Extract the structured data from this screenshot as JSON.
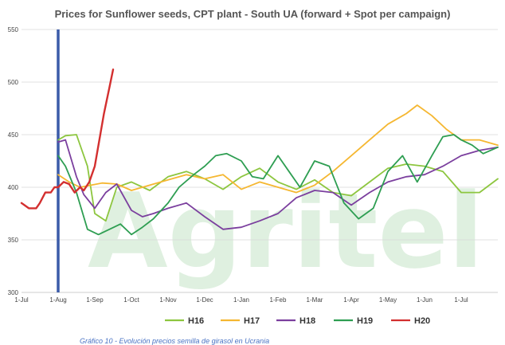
{
  "chart_data": {
    "type": "line",
    "title": "Prices for Sunflower seeds, CPT plant - South UA (forward + Spot per campaign)",
    "watermark": "Agritel",
    "caption": "Gráfico 10 - Evolución precios semilla de girasol en Ucrania",
    "y_ticks": [
      "300",
      "350",
      "400",
      "450",
      "500",
      "550"
    ],
    "ylim": [
      300,
      550
    ],
    "x_ticks": [
      "1-Jul",
      "1-Aug",
      "1-Sep",
      "1-Oct",
      "1-Nov",
      "1-Dec",
      "1-Jan",
      "1-Feb",
      "1-Mar",
      "1-Apr",
      "1-May",
      "1-Jun",
      "1-Jul"
    ],
    "x_range_months": [
      0,
      13
    ],
    "marker": {
      "x": 1.0,
      "label": "1-Aug",
      "color": "#3b5ba9"
    },
    "grid": true,
    "legend_position": "bottom",
    "series": [
      {
        "name": "H16",
        "color": "#8dc63f",
        "x": [
          1.0,
          1.2,
          1.5,
          1.8,
          2.0,
          2.3,
          2.6,
          3.0,
          3.5,
          4.0,
          4.5,
          5.0,
          5.5,
          6.0,
          6.5,
          7.0,
          7.5,
          8.0,
          8.5,
          9.0,
          9.5,
          10.0,
          10.5,
          11.0,
          11.5,
          12.0,
          12.5,
          13.0
        ],
        "y": [
          445,
          449,
          450,
          420,
          375,
          368,
          400,
          405,
          397,
          410,
          415,
          408,
          398,
          410,
          418,
          405,
          398,
          407,
          395,
          392,
          405,
          418,
          422,
          420,
          415,
          395,
          395,
          408
        ]
      },
      {
        "name": "H17",
        "color": "#f5b731",
        "x": [
          1.0,
          1.3,
          1.6,
          1.9,
          2.2,
          2.6,
          3.0,
          3.5,
          4.0,
          4.5,
          5.0,
          5.5,
          6.0,
          6.5,
          7.0,
          7.5,
          8.0,
          8.5,
          9.0,
          9.5,
          10.0,
          10.5,
          10.8,
          11.2,
          11.6,
          12.0,
          12.5,
          13.0
        ],
        "y": [
          412,
          405,
          400,
          402,
          404,
          403,
          397,
          402,
          407,
          412,
          408,
          412,
          398,
          405,
          400,
          395,
          402,
          415,
          430,
          445,
          460,
          470,
          478,
          468,
          455,
          445,
          445,
          440
        ]
      },
      {
        "name": "H18",
        "color": "#7b3f9e",
        "x": [
          1.0,
          1.2,
          1.5,
          1.7,
          2.0,
          2.3,
          2.6,
          3.0,
          3.3,
          3.6,
          4.0,
          4.5,
          5.0,
          5.5,
          6.0,
          6.5,
          7.0,
          7.5,
          8.0,
          8.5,
          9.0,
          9.5,
          10.0,
          10.5,
          11.0,
          11.5,
          12.0,
          12.5,
          13.0
        ],
        "y": [
          443,
          445,
          410,
          393,
          380,
          395,
          403,
          378,
          372,
          375,
          380,
          385,
          372,
          360,
          362,
          368,
          375,
          390,
          397,
          395,
          383,
          395,
          405,
          410,
          412,
          420,
          430,
          435,
          438
        ]
      },
      {
        "name": "H19",
        "color": "#2e9e52",
        "x": [
          1.0,
          1.2,
          1.5,
          1.8,
          2.1,
          2.4,
          2.7,
          3.0,
          3.3,
          3.6,
          4.0,
          4.3,
          4.7,
          5.0,
          5.3,
          5.6,
          6.0,
          6.3,
          6.6,
          7.0,
          7.3,
          7.6,
          8.0,
          8.4,
          8.8,
          9.2,
          9.6,
          10.0,
          10.4,
          10.8,
          11.2,
          11.5,
          11.8,
          12.0,
          12.3,
          12.6,
          13.0
        ],
        "y": [
          430,
          420,
          395,
          360,
          355,
          360,
          365,
          355,
          362,
          370,
          385,
          400,
          412,
          420,
          430,
          432,
          425,
          410,
          408,
          430,
          415,
          400,
          425,
          420,
          385,
          370,
          380,
          415,
          430,
          405,
          430,
          448,
          450,
          445,
          440,
          432,
          438
        ]
      },
      {
        "name": "H20",
        "color": "#d32f2f",
        "x": [
          0.0,
          0.2,
          0.4,
          0.5,
          0.65,
          0.8,
          0.9,
          1.0,
          1.15,
          1.3,
          1.45,
          1.6,
          1.7,
          1.85,
          2.0,
          2.1,
          2.25,
          2.4,
          2.5
        ],
        "y": [
          385,
          380,
          380,
          385,
          395,
          395,
          400,
          400,
          405,
          403,
          395,
          400,
          397,
          405,
          420,
          440,
          470,
          495,
          512
        ]
      }
    ]
  }
}
